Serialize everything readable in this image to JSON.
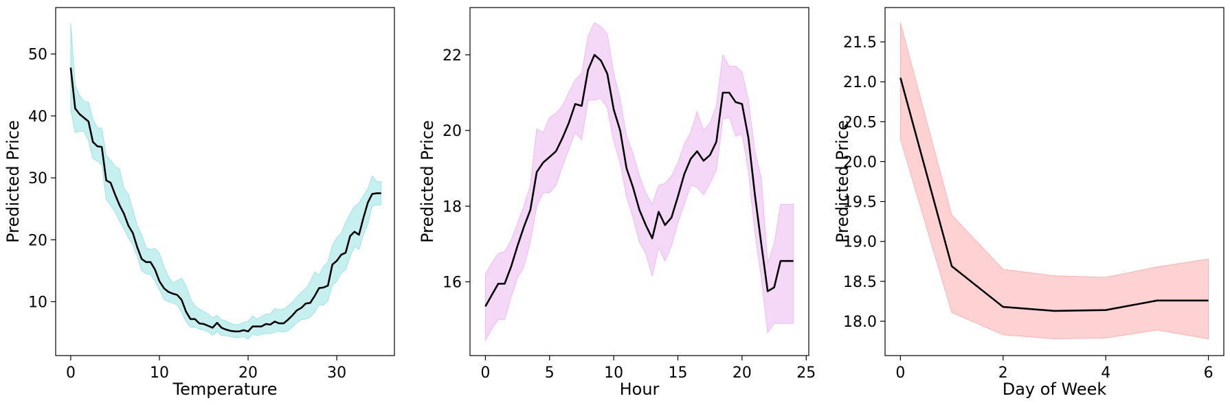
{
  "chart_data": [
    {
      "type": "line",
      "xlabel": "Temperature",
      "ylabel": "Predicted Price",
      "xlim": [
        -1.7,
        36.5
      ],
      "ylim": [
        1.3,
        57.5
      ],
      "xticks": [
        0,
        10,
        20,
        30
      ],
      "yticks": [
        10,
        20,
        30,
        40,
        50
      ],
      "band_color": "#7fdedb",
      "line_color": "#000000",
      "series": [
        {
          "x": [
            0,
            0.5,
            1,
            1.5,
            2,
            2.5,
            3,
            3.5,
            4,
            4.5,
            5,
            5.5,
            6,
            6.5,
            7,
            7.5,
            8,
            8.5,
            9,
            9.5,
            10,
            10.5,
            11,
            11.5,
            12,
            12.5,
            13,
            13.5,
            14,
            14.5,
            15,
            15.5,
            16,
            16.5,
            17,
            17.5,
            18,
            18.5,
            19,
            19.5,
            20,
            20.5,
            21,
            21.5,
            22,
            22.5,
            23,
            23.5,
            24,
            24.5,
            25,
            25.5,
            26,
            26.5,
            27,
            27.5,
            28,
            28.5,
            29,
            29.5,
            30,
            30.5,
            31,
            31.5,
            32,
            32.5,
            33,
            33.5,
            34,
            34.5,
            35
          ],
          "y": [
            47.8,
            41.2,
            40.3,
            39.7,
            39.1,
            35.8,
            35.1,
            35.0,
            29.6,
            29.2,
            27.3,
            25.6,
            24.2,
            22.3,
            21.1,
            18.8,
            16.9,
            16.4,
            16.4,
            15.2,
            13.3,
            12.2,
            11.6,
            11.3,
            11.1,
            10.3,
            8.4,
            7.2,
            7.2,
            6.5,
            6.4,
            6.1,
            5.8,
            6.6,
            5.8,
            5.5,
            5.3,
            5.2,
            5.2,
            5.4,
            5.2,
            6.0,
            6.0,
            6.0,
            6.4,
            6.3,
            6.8,
            6.5,
            6.5,
            7.1,
            7.8,
            8.6,
            9.0,
            9.7,
            9.8,
            10.9,
            12.2,
            12.3,
            12.6,
            16.0,
            16.6,
            17.6,
            17.9,
            20.6,
            21.3,
            20.8,
            23.5,
            26.0,
            27.4,
            27.5,
            27.5
          ],
          "upper": [
            55.0,
            45.0,
            43.3,
            42.4,
            42.2,
            39.5,
            38.1,
            38.0,
            33.6,
            32.9,
            31.8,
            31.5,
            28.3,
            27.4,
            24.8,
            22.3,
            20.8,
            18.7,
            18.4,
            18.6,
            17.8,
            15.7,
            14.1,
            13.0,
            13.4,
            13.8,
            12.6,
            10.5,
            9.3,
            8.8,
            8.4,
            8.0,
            7.4,
            7.8,
            7.1,
            6.9,
            6.5,
            6.3,
            6.3,
            6.7,
            6.8,
            7.7,
            7.2,
            7.6,
            8.0,
            8.0,
            8.9,
            8.7,
            8.8,
            9.3,
            9.9,
            10.8,
            11.5,
            12.1,
            13.2,
            14.8,
            14.3,
            15.7,
            16.4,
            19.1,
            20.3,
            21.1,
            22.8,
            24.2,
            25.4,
            25.9,
            27.1,
            28.2,
            30.3,
            29.4,
            29.4
          ],
          "lower": [
            41.0,
            37.3,
            37.5,
            37.5,
            36.0,
            33.1,
            32.7,
            32.1,
            26.5,
            25.6,
            24.5,
            23.0,
            21.8,
            20.3,
            19.2,
            17.4,
            15.0,
            14.5,
            14.4,
            13.3,
            11.9,
            10.4,
            10.0,
            9.8,
            9.5,
            8.3,
            6.8,
            5.9,
            5.9,
            5.6,
            5.4,
            5.1,
            4.6,
            5.2,
            4.5,
            4.5,
            4.4,
            4.2,
            4.2,
            4.4,
            3.9,
            4.8,
            4.5,
            4.7,
            4.9,
            4.8,
            5.1,
            5.2,
            5.1,
            5.3,
            5.9,
            6.6,
            7.1,
            7.2,
            7.5,
            8.3,
            9.5,
            9.4,
            10.2,
            12.7,
            13.3,
            14.6,
            15.2,
            17.3,
            18.9,
            18.4,
            20.8,
            22.5,
            25.5,
            25.6,
            25.6
          ]
        }
      ]
    },
    {
      "type": "line",
      "xlabel": "Hour",
      "ylabel": "Predicted Price",
      "xlim": [
        -1.2,
        25.2
      ],
      "ylim": [
        14.05,
        23.25
      ],
      "xticks": [
        0,
        5,
        10,
        15,
        20,
        25
      ],
      "yticks": [
        16,
        18,
        20,
        22
      ],
      "band_color": "#e9a7ef",
      "line_color": "#000000",
      "series": [
        {
          "x": [
            0,
            0.5,
            1,
            1.5,
            2,
            2.5,
            3,
            3.5,
            4,
            4.5,
            5,
            5.5,
            6,
            6.5,
            7,
            7.5,
            8,
            8.5,
            9,
            9.5,
            10,
            10.5,
            11,
            11.5,
            12,
            12.5,
            13,
            13.5,
            14,
            14.5,
            15,
            15.5,
            16,
            16.5,
            17,
            17.5,
            18,
            18.5,
            19,
            19.5,
            20,
            20.5,
            21,
            21.5,
            22,
            22.5,
            23,
            23.5,
            24
          ],
          "y": [
            15.35,
            15.65,
            15.95,
            15.95,
            16.4,
            16.95,
            17.45,
            17.9,
            18.9,
            19.15,
            19.3,
            19.45,
            19.8,
            20.2,
            20.7,
            20.65,
            21.6,
            22.0,
            21.85,
            21.5,
            20.55,
            20.0,
            19.0,
            18.5,
            17.9,
            17.5,
            17.15,
            17.85,
            17.5,
            17.7,
            18.25,
            18.85,
            19.25,
            19.45,
            19.2,
            19.35,
            19.7,
            21.0,
            21.0,
            20.75,
            20.7,
            19.8,
            18.3,
            17.0,
            15.75,
            15.85,
            16.55,
            16.55,
            16.55
          ],
          "upper": [
            16.2,
            16.5,
            16.75,
            16.8,
            17.1,
            17.55,
            18.0,
            18.55,
            20.05,
            19.95,
            20.35,
            20.45,
            20.65,
            21.0,
            21.35,
            21.5,
            22.5,
            22.85,
            22.75,
            22.55,
            21.5,
            20.85,
            19.85,
            19.4,
            18.8,
            18.35,
            18.05,
            18.55,
            18.6,
            18.8,
            19.15,
            19.65,
            19.95,
            20.5,
            20.0,
            20.2,
            20.65,
            22.0,
            21.7,
            21.7,
            21.55,
            20.8,
            19.45,
            18.75,
            16.5,
            17.0,
            18.05,
            18.05,
            18.05
          ],
          "lower": [
            14.45,
            14.75,
            15.0,
            15.0,
            15.6,
            16.1,
            16.4,
            17.05,
            18.0,
            18.35,
            18.35,
            18.55,
            19.05,
            19.5,
            19.95,
            19.75,
            20.8,
            20.8,
            20.85,
            20.6,
            19.7,
            19.15,
            18.25,
            17.7,
            17.05,
            16.75,
            16.15,
            16.9,
            16.55,
            16.95,
            17.55,
            18.05,
            18.55,
            18.5,
            18.3,
            18.6,
            18.95,
            20.3,
            20.35,
            19.85,
            19.9,
            18.9,
            17.3,
            16.1,
            14.65,
            14.9,
            14.9,
            14.9,
            14.9
          ]
        }
      ]
    },
    {
      "type": "line",
      "xlabel": "Day of Week",
      "ylabel": "Predicted Price",
      "xlim": [
        -0.3,
        6.3
      ],
      "ylim": [
        17.57,
        21.93
      ],
      "xticks": [
        0,
        2,
        4,
        6
      ],
      "ytick_labels": [
        "18.0",
        "18.5",
        "19.0",
        "19.5",
        "20.0",
        "20.5",
        "21.0",
        "21.5"
      ],
      "yticks": [
        18.0,
        18.5,
        19.0,
        19.5,
        20.0,
        20.5,
        21.0,
        21.5
      ],
      "band_color": "#fd9b9b",
      "line_color": "#000000",
      "series": [
        {
          "x": [
            0,
            1,
            2,
            3,
            4,
            5,
            6
          ],
          "y": [
            21.05,
            18.69,
            18.18,
            18.13,
            18.14,
            18.26,
            18.26
          ],
          "upper": [
            21.74,
            19.33,
            18.65,
            18.57,
            18.55,
            18.68,
            18.78
          ],
          "lower": [
            20.28,
            18.11,
            17.83,
            17.78,
            17.79,
            17.89,
            17.78
          ]
        }
      ]
    }
  ]
}
